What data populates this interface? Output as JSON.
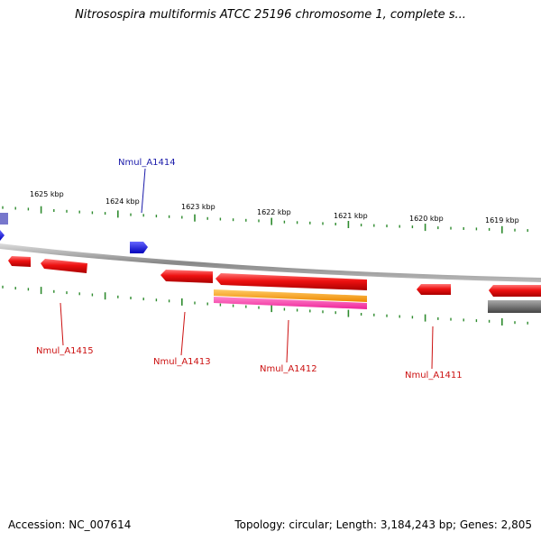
{
  "title": "Nitrosospira multiformis ATCC 25196 chromosome 1, complete s...",
  "footer": {
    "accession": "Accession: NC_007614",
    "stats": "Topology: circular; Length: 3,184,243 bp; Genes: 2,805"
  },
  "ticks": [
    {
      "label": "1625 kbp",
      "kbp": 1625
    },
    {
      "label": "1624 kbp",
      "kbp": 1624
    },
    {
      "label": "1623 kbp",
      "kbp": 1623
    },
    {
      "label": "1622 kbp",
      "kbp": 1622
    },
    {
      "label": "1621 kbp",
      "kbp": 1621
    },
    {
      "label": "1620 kbp",
      "kbp": 1620
    },
    {
      "label": "1619 kbp",
      "kbp": 1619
    }
  ],
  "gene_labels": [
    {
      "label": "Nmul_A1414",
      "color": "#1a1aaa"
    },
    {
      "label": "Nmul_A1415",
      "color": "#cc1111"
    },
    {
      "label": "Nmul_A1413",
      "color": "#cc1111"
    },
    {
      "label": "Nmul_A1412",
      "color": "#cc1111"
    },
    {
      "label": "Nmul_A1411",
      "color": "#cc1111"
    }
  ],
  "colors": {
    "cds": "#ee1111",
    "gene_blue": "#1111ee",
    "rrna_orange": "#ff9900",
    "trna_magenta": "#ff33aa",
    "gray_feature": "#707070",
    "backbone": "#999999",
    "tick": "#2e8b2e"
  }
}
